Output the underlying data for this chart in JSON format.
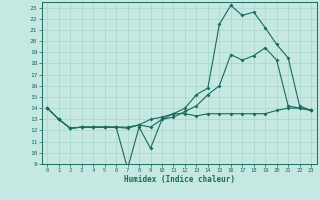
{
  "xlabel": "Humidex (Indice chaleur)",
  "bg_color": "#c5e8e2",
  "line_color": "#1a6b5a",
  "grid_color": "#a8d4cc",
  "xlim": [
    -0.5,
    23.5
  ],
  "ylim": [
    9,
    23.5
  ],
  "xticks": [
    0,
    1,
    2,
    3,
    4,
    5,
    6,
    7,
    8,
    9,
    10,
    11,
    12,
    13,
    14,
    15,
    16,
    17,
    18,
    19,
    20,
    21,
    22,
    23
  ],
  "yticks": [
    9,
    10,
    11,
    12,
    13,
    14,
    15,
    16,
    17,
    18,
    19,
    20,
    21,
    22,
    23
  ],
  "line1_x": [
    0,
    1,
    2,
    3,
    4,
    5,
    6,
    7,
    8,
    9,
    10,
    11,
    12,
    13,
    14,
    15,
    16,
    17,
    18,
    19,
    20,
    21,
    22,
    23
  ],
  "line1_y": [
    14,
    13,
    12.2,
    12.3,
    12.3,
    12.3,
    12.3,
    8.6,
    12.3,
    10.4,
    13.0,
    13.2,
    13.7,
    14.2,
    15.2,
    16.0,
    18.8,
    18.3,
    18.7,
    19.4,
    18.3,
    14.2,
    14.0,
    13.8
  ],
  "line2_x": [
    0,
    1,
    2,
    3,
    4,
    5,
    6,
    7,
    8,
    9,
    10,
    11,
    12,
    13,
    14,
    15,
    16,
    17,
    18,
    19,
    20,
    21,
    22,
    23
  ],
  "line2_y": [
    14,
    13,
    12.2,
    12.3,
    12.3,
    12.3,
    12.3,
    12.2,
    12.5,
    12.3,
    13.0,
    13.5,
    14.0,
    15.2,
    15.8,
    21.5,
    23.2,
    22.3,
    22.6,
    21.2,
    19.7,
    18.5,
    14.2,
    13.8
  ],
  "line3_x": [
    0,
    1,
    2,
    3,
    4,
    5,
    6,
    7,
    8,
    9,
    10,
    11,
    12,
    13,
    14,
    15,
    16,
    17,
    18,
    19,
    20,
    21,
    22,
    23
  ],
  "line3_y": [
    14,
    13,
    12.2,
    12.3,
    12.3,
    12.3,
    12.3,
    12.3,
    12.5,
    13.0,
    13.2,
    13.5,
    13.5,
    13.3,
    13.5,
    13.5,
    13.5,
    13.5,
    13.5,
    13.5,
    13.8,
    14.0,
    14.0,
    13.8
  ]
}
